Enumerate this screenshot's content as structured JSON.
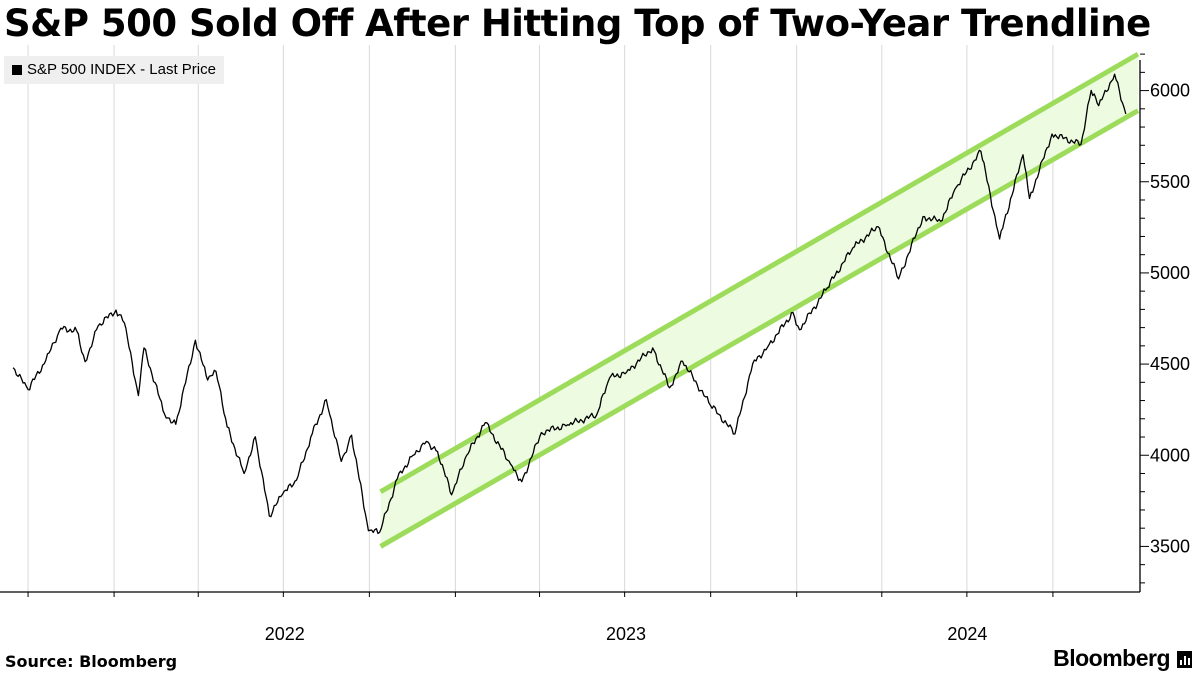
{
  "chart_data": {
    "type": "line",
    "title": "S&P 500 Sold Off After Hitting Top of Two-Year Trendline",
    "series": [
      {
        "name": "S&P 500 INDEX - Last Price",
        "points": [
          [
            "2021-09-15",
            4480
          ],
          [
            "2021-10-01",
            4360
          ],
          [
            "2021-10-20",
            4520
          ],
          [
            "2021-11-05",
            4697
          ],
          [
            "2021-11-22",
            4682
          ],
          [
            "2021-12-01",
            4513
          ],
          [
            "2021-12-15",
            4710
          ],
          [
            "2022-01-03",
            4796
          ],
          [
            "2022-01-12",
            4726
          ],
          [
            "2022-01-27",
            4327
          ],
          [
            "2022-02-02",
            4589
          ],
          [
            "2022-02-24",
            4225
          ],
          [
            "2022-03-08",
            4170
          ],
          [
            "2022-03-29",
            4631
          ],
          [
            "2022-04-11",
            4412
          ],
          [
            "2022-04-20",
            4460
          ],
          [
            "2022-05-02",
            4155
          ],
          [
            "2022-05-20",
            3900
          ],
          [
            "2022-06-01",
            4101
          ],
          [
            "2022-06-16",
            3667
          ],
          [
            "2022-06-30",
            3785
          ],
          [
            "2022-07-15",
            3863
          ],
          [
            "2022-08-01",
            4119
          ],
          [
            "2022-08-16",
            4305
          ],
          [
            "2022-09-01",
            3966
          ],
          [
            "2022-09-12",
            4110
          ],
          [
            "2022-09-30",
            3586
          ],
          [
            "2022-10-12",
            3577
          ],
          [
            "2022-10-31",
            3872
          ],
          [
            "2022-11-15",
            3992
          ],
          [
            "2022-12-01",
            4076
          ],
          [
            "2022-12-13",
            4020
          ],
          [
            "2022-12-28",
            3783
          ],
          [
            "2023-01-13",
            3999
          ],
          [
            "2023-02-02",
            4179
          ],
          [
            "2023-03-01",
            3951
          ],
          [
            "2023-03-13",
            3855
          ],
          [
            "2023-04-03",
            4125
          ],
          [
            "2023-05-01",
            4167
          ],
          [
            "2023-06-01",
            4221
          ],
          [
            "2023-06-15",
            4425
          ],
          [
            "2023-07-03",
            4455
          ],
          [
            "2023-07-31",
            4589
          ],
          [
            "2023-08-18",
            4370
          ],
          [
            "2023-09-01",
            4515
          ],
          [
            "2023-09-29",
            4288
          ],
          [
            "2023-10-27",
            4117
          ],
          [
            "2023-11-15",
            4502
          ],
          [
            "2023-12-01",
            4594
          ],
          [
            "2023-12-28",
            4783
          ],
          [
            "2024-01-04",
            4688
          ],
          [
            "2024-02-01",
            4906
          ],
          [
            "2024-03-01",
            5137
          ],
          [
            "2024-03-28",
            5254
          ],
          [
            "2024-04-19",
            4967
          ],
          [
            "2024-05-15",
            5308
          ],
          [
            "2024-06-03",
            5283
          ],
          [
            "2024-06-20",
            5473
          ],
          [
            "2024-07-16",
            5667
          ],
          [
            "2024-08-05",
            5186
          ],
          [
            "2024-08-30",
            5648
          ],
          [
            "2024-09-06",
            5408
          ],
          [
            "2024-09-30",
            5762
          ],
          [
            "2024-10-31",
            5705
          ],
          [
            "2024-11-11",
            6001
          ],
          [
            "2024-11-19",
            5917
          ],
          [
            "2024-12-06",
            6090
          ],
          [
            "2024-12-18",
            5872
          ]
        ]
      }
    ],
    "trend_channel": {
      "upper": [
        [
          "2022-10-13",
          3800
        ],
        [
          "2024-12-31",
          6200
        ]
      ],
      "lower": [
        [
          "2022-10-13",
          3500
        ],
        [
          "2024-12-31",
          5890
        ]
      ]
    },
    "x_range": [
      "2021-09-01",
      "2024-12-31"
    ],
    "x_ticks": [
      {
        "date": "2022-01-01",
        "label": "2022"
      },
      {
        "date": "2023-01-01",
        "label": "2023"
      },
      {
        "date": "2024-01-01",
        "label": "2024"
      }
    ],
    "y_range": [
      3250,
      6250
    ],
    "y_ticks": [
      3500,
      4000,
      4500,
      5000,
      5500,
      6000
    ],
    "grid": "vertical",
    "legend": "top-left",
    "axis_side": "right",
    "colors": {
      "line": "#000000",
      "channel_edge": "#9ddb5a",
      "channel_fill": "#edfbe1",
      "grid": "#d8d8d8"
    }
  },
  "source": "Source: Bloomberg",
  "brand": "Bloomberg"
}
